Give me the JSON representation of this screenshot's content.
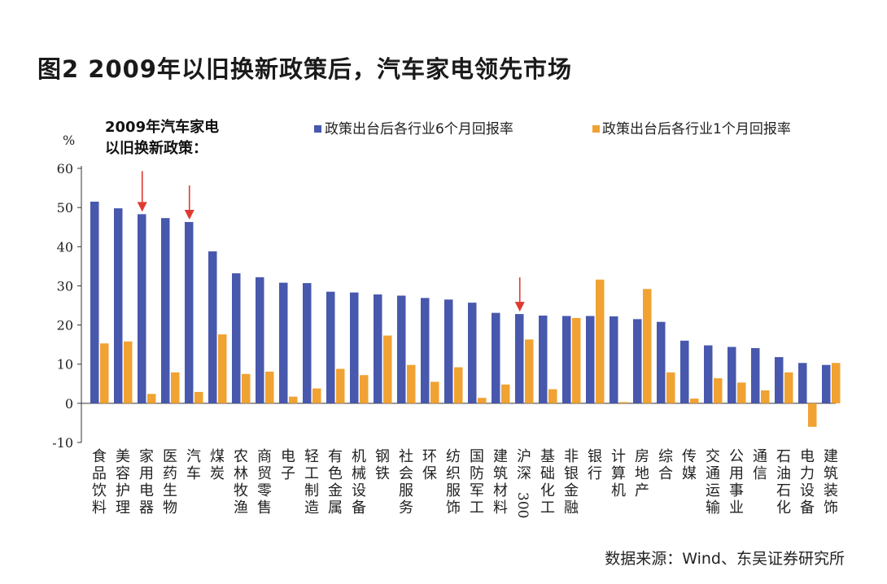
{
  "page": {
    "title": "图2  2009年以旧换新政策后，汽车家电领先市场",
    "source": "数据来源：Wind、东吴证券研究所"
  },
  "chart_data": {
    "type": "bar",
    "unit_label": "%",
    "annotation": "2009年汽车家电以旧换新政策：",
    "ylim": [
      -10,
      60
    ],
    "yticks": [
      -10,
      0,
      10,
      20,
      30,
      40,
      50,
      60
    ],
    "grid": false,
    "legend_position": "top",
    "categories": [
      "食品饮料",
      "美容护理",
      "家用电器",
      "医药生物",
      "汽车",
      "煤炭",
      "农林牧渔",
      "商贸零售",
      "电子",
      "轻工制造",
      "有色金属",
      "机械设备",
      "钢铁",
      "社会服务",
      "环保",
      "纺织服饰",
      "国防军工",
      "建筑材料",
      "沪深300",
      "基础化工",
      "非银金融",
      "银行",
      "计算机",
      "房地产",
      "综合",
      "传媒",
      "交通运输",
      "公用事业",
      "通信",
      "石油石化",
      "电力设备",
      "建筑装饰"
    ],
    "series": [
      {
        "name": "政策出台后各行业6个月回报率",
        "color": "#4758ad",
        "values": [
          51.5,
          49.8,
          48.3,
          47.3,
          46.3,
          38.8,
          33.2,
          32.2,
          30.8,
          30.7,
          28.5,
          28.3,
          27.8,
          27.5,
          26.9,
          26.5,
          25.7,
          23.1,
          22.8,
          22.4,
          22.3,
          22.3,
          22.2,
          21.5,
          20.8,
          16.0,
          14.8,
          14.4,
          14.1,
          11.8,
          10.3,
          9.8
        ]
      },
      {
        "name": "政策出台后各行业1个月回报率",
        "color": "#f0a232",
        "values": [
          15.3,
          15.8,
          2.4,
          7.9,
          2.9,
          17.6,
          7.5,
          8.1,
          1.7,
          3.8,
          8.8,
          7.2,
          17.3,
          9.8,
          5.5,
          9.2,
          1.4,
          4.8,
          16.3,
          3.6,
          21.8,
          31.6,
          0.3,
          29.2,
          7.9,
          1.2,
          6.4,
          5.3,
          3.3,
          7.9,
          -6.0,
          10.3
        ]
      }
    ],
    "arrows_at": [
      "家用电器",
      "汽车",
      "沪深300"
    ]
  }
}
